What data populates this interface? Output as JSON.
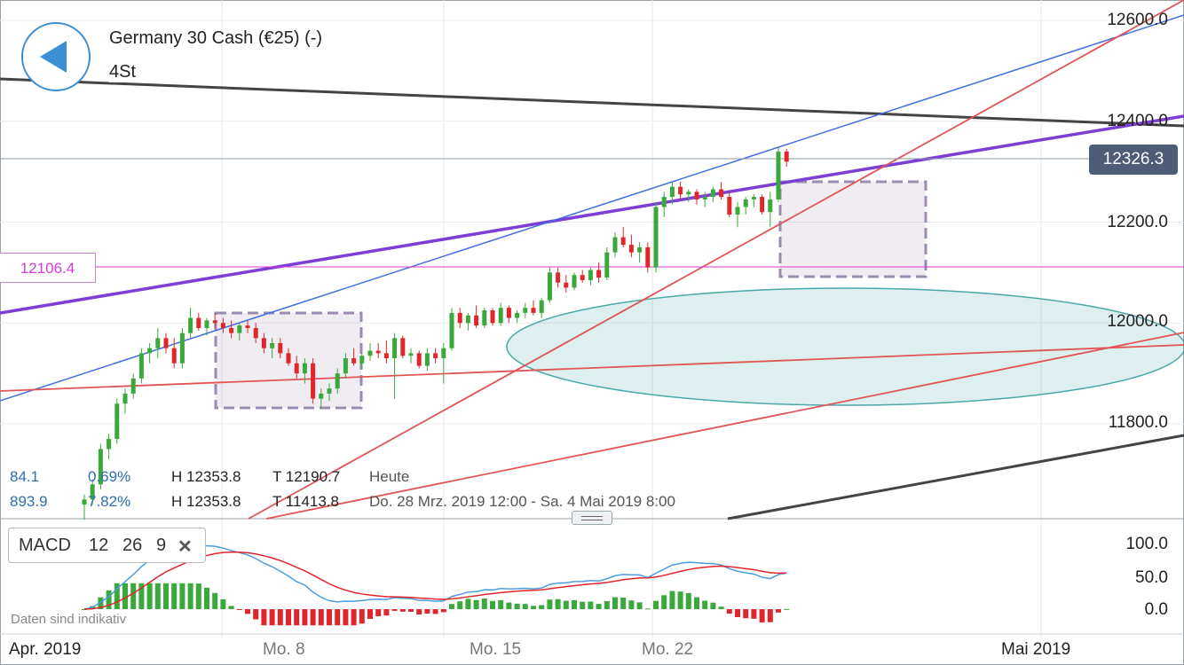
{
  "header": {
    "instrument": "Germany 30 Cash (€25) (-)",
    "timeframe": "4St"
  },
  "price_tag": "12326.3",
  "line_tag": "12106.4",
  "colors": {
    "up": "#3aa83a",
    "down": "#e0262b",
    "purple_line": "#7b3fd6",
    "blue_line": "#3f6fe0",
    "red_line": "#e05555",
    "ellipse": "#4aa8a8",
    "price_tag_bg": "#4d5d78",
    "macd_line": "#4d9be0",
    "signal_line": "#e0262b"
  },
  "stats": {
    "row1": {
      "a": "84.1",
      "b": "0.69%",
      "h": "H 12353.8",
      "t": "T 12190.7",
      "label": "Heute"
    },
    "row2": {
      "a": "893.9",
      "b": "7.82%",
      "h": "H 12353.8",
      "t": "T 11413.8",
      "label": "Do. 28 Mrz. 2019 12:00 - Sa. 4 Mai 2019 8:00"
    }
  },
  "macd": {
    "name": "MACD",
    "p1": "12",
    "p2": "26",
    "p3": "9",
    "close": "✕"
  },
  "disclaimer": "Daten sind indikativ",
  "chart_data": {
    "type": "candlestick",
    "y_ticks": [
      "12600.0",
      "12400.0",
      "12200.0",
      "12000.0",
      "11800.0"
    ],
    "y_tick_values": [
      12600,
      12400,
      12200,
      12000,
      11800
    ],
    "x_ticks": [
      "Apr. 2019",
      "Mo. 8",
      "Mo. 15",
      "Mo. 22",
      "Mai 2019"
    ],
    "price_ylim": [
      11580,
      12630
    ],
    "macd_ticks": [
      "100.0",
      "50.0",
      "0.0"
    ],
    "macd_tick_values": [
      100,
      50,
      0
    ],
    "macd_ylim": [
      -30,
      115
    ],
    "candles": [
      [
        11640,
        11660,
        11610,
        11650
      ],
      [
        11650,
        11690,
        11640,
        11680
      ],
      [
        11680,
        11760,
        11670,
        11750
      ],
      [
        11750,
        11780,
        11730,
        11770
      ],
      [
        11770,
        11850,
        11760,
        11840
      ],
      [
        11840,
        11870,
        11820,
        11860
      ],
      [
        11860,
        11900,
        11850,
        11890
      ],
      [
        11890,
        11950,
        11880,
        11940
      ],
      [
        11940,
        11960,
        11920,
        11950
      ],
      [
        11950,
        11990,
        11930,
        11970
      ],
      [
        11970,
        11980,
        11940,
        11950
      ],
      [
        11950,
        11970,
        11910,
        11920
      ],
      [
        11920,
        11990,
        11910,
        11980
      ],
      [
        11980,
        12030,
        11970,
        12010
      ],
      [
        12010,
        12020,
        11985,
        11990
      ],
      [
        11990,
        12010,
        11975,
        12005
      ],
      [
        12005,
        12020,
        11990,
        12000
      ],
      [
        12000,
        12010,
        11980,
        11990
      ],
      [
        11990,
        12005,
        11970,
        11980
      ],
      [
        11980,
        12000,
        11965,
        11995
      ],
      [
        11995,
        12005,
        11980,
        11990
      ],
      [
        11990,
        12000,
        11960,
        11970
      ],
      [
        11970,
        11980,
        11940,
        11950
      ],
      [
        11950,
        11970,
        11930,
        11960
      ],
      [
        11960,
        11970,
        11930,
        11940
      ],
      [
        11940,
        11950,
        11915,
        11920
      ],
      [
        11920,
        11935,
        11890,
        11900
      ],
      [
        11900,
        11930,
        11880,
        11920
      ],
      [
        11920,
        11930,
        11840,
        11850
      ],
      [
        11850,
        11870,
        11830,
        11860
      ],
      [
        11860,
        11880,
        11845,
        11870
      ],
      [
        11870,
        11910,
        11860,
        11900
      ],
      [
        11900,
        11940,
        11890,
        11930
      ],
      [
        11930,
        11950,
        11915,
        11920
      ],
      [
        11920,
        11940,
        11910,
        11935
      ],
      [
        11935,
        11960,
        11925,
        11945
      ],
      [
        11945,
        11960,
        11930,
        11940
      ],
      [
        11940,
        11965,
        11920,
        11930
      ],
      [
        11930,
        11980,
        11850,
        11970
      ],
      [
        11970,
        11975,
        11930,
        11935
      ],
      [
        11935,
        11950,
        11920,
        11940
      ],
      [
        11940,
        11945,
        11910,
        11915
      ],
      [
        11915,
        11950,
        11905,
        11940
      ],
      [
        11940,
        11950,
        11920,
        11930
      ],
      [
        11930,
        11960,
        11880,
        11950
      ],
      [
        11950,
        12030,
        11945,
        12020
      ],
      [
        12020,
        12030,
        11990,
        12000
      ],
      [
        12000,
        12020,
        11985,
        12015
      ],
      [
        12015,
        12035,
        11990,
        11995
      ],
      [
        11995,
        12030,
        11990,
        12025
      ],
      [
        12025,
        12030,
        11995,
        12000
      ],
      [
        12000,
        12040,
        11995,
        12030
      ],
      [
        12030,
        12035,
        12000,
        12010
      ],
      [
        12010,
        12025,
        12000,
        12020
      ],
      [
        12020,
        12040,
        12010,
        12030
      ],
      [
        12030,
        12045,
        12015,
        12020
      ],
      [
        12020,
        12050,
        12010,
        12045
      ],
      [
        12045,
        12110,
        12040,
        12100
      ],
      [
        12100,
        12110,
        12070,
        12080
      ],
      [
        12080,
        12095,
        12060,
        12070
      ],
      [
        12070,
        12100,
        12065,
        12095
      ],
      [
        12095,
        12105,
        12080,
        12085
      ],
      [
        12085,
        12110,
        12075,
        12105
      ],
      [
        12105,
        12120,
        12080,
        12090
      ],
      [
        12090,
        12150,
        12085,
        12140
      ],
      [
        12140,
        12180,
        12130,
        12170
      ],
      [
        12170,
        12190,
        12150,
        12155
      ],
      [
        12155,
        12175,
        12130,
        12140
      ],
      [
        12140,
        12160,
        12120,
        12150
      ],
      [
        12150,
        12160,
        12100,
        12110
      ],
      [
        12110,
        12240,
        12100,
        12230
      ],
      [
        12230,
        12260,
        12210,
        12250
      ],
      [
        12250,
        12280,
        12235,
        12270
      ],
      [
        12270,
        12280,
        12245,
        12255
      ],
      [
        12255,
        12265,
        12240,
        12260
      ],
      [
        12260,
        12265,
        12235,
        12245
      ],
      [
        12245,
        12260,
        12230,
        12250
      ],
      [
        12250,
        12270,
        12240,
        12265
      ],
      [
        12265,
        12280,
        12245,
        12250
      ],
      [
        12250,
        12260,
        12210,
        12215
      ],
      [
        12215,
        12240,
        12190,
        12230
      ],
      [
        12230,
        12250,
        12215,
        12245
      ],
      [
        12245,
        12255,
        12230,
        12250
      ],
      [
        12250,
        12255,
        12215,
        12220
      ],
      [
        12220,
        12260,
        12190,
        12245
      ],
      [
        12245,
        12350,
        12240,
        12340
      ],
      [
        12340,
        12345,
        12310,
        12320
      ]
    ]
  }
}
